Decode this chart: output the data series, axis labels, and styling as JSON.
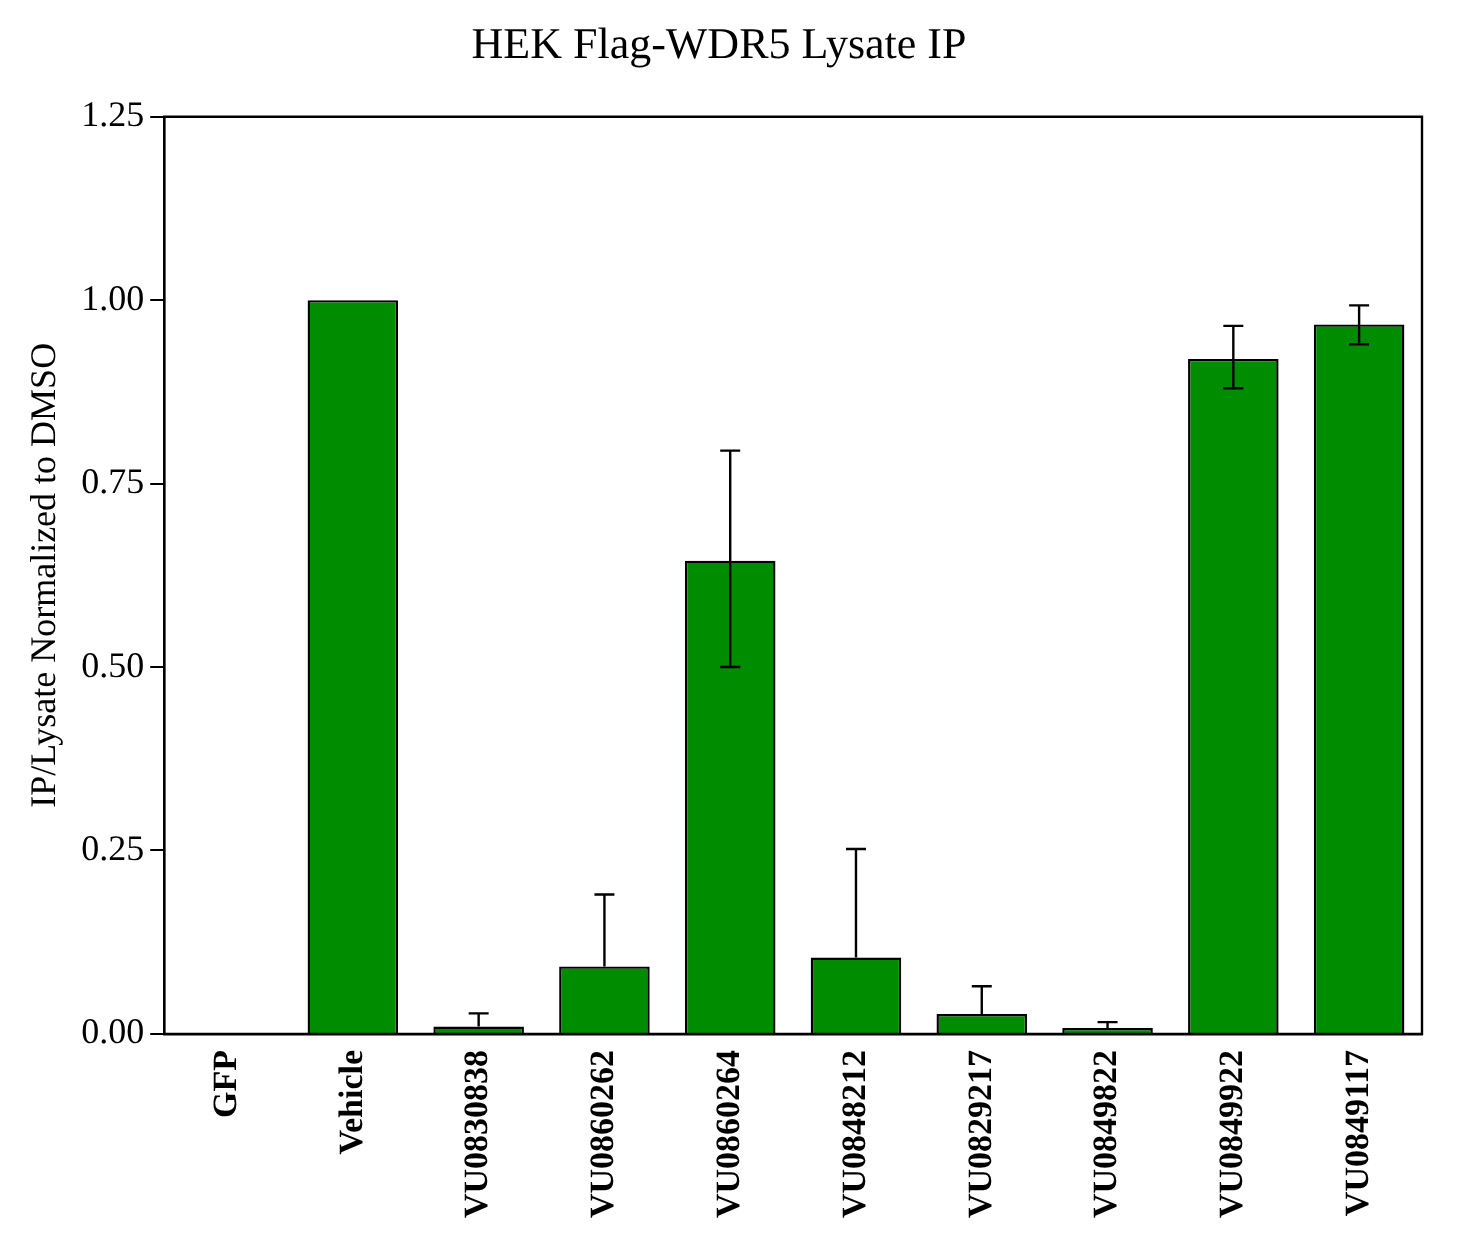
{
  "chart_data": {
    "type": "bar",
    "title": "HEK Flag-WDR5 Lysate IP",
    "ylabel": "IP/Lysate Normalized to DMSO",
    "categories": [
      "GFP",
      "Vehicle",
      "VU0830838",
      "VU0860262",
      "VU0860264",
      "VU0848212",
      "VU0829217",
      "VU0849822",
      "VU0849922",
      "VU0849117"
    ],
    "values": [
      0,
      1.0,
      0.01,
      0.092,
      0.645,
      0.104,
      0.027,
      0.008,
      0.92,
      0.967
    ],
    "errors": [
      null,
      null,
      [
        0.01,
        0.028
      ],
      [
        0.092,
        0.19
      ],
      [
        0.5,
        0.795
      ],
      [
        0.104,
        0.252
      ],
      [
        0.027,
        0.065
      ],
      [
        0.008,
        0.016
      ],
      [
        0.88,
        0.965
      ],
      [
        0.94,
        0.993
      ]
    ],
    "color": "#008c00",
    "ylim": [
      0,
      1.25
    ],
    "yticks": [
      {
        "value": 0,
        "label": "0.00"
      },
      {
        "value": 0.25,
        "label": "0.25"
      },
      {
        "value": 0.5,
        "label": "0.50"
      },
      {
        "value": 0.75,
        "label": "0.75"
      },
      {
        "value": 1,
        "label": "1.00"
      },
      {
        "value": 1.25,
        "label": "1.25"
      }
    ],
    "grid": false,
    "legend": false
  }
}
